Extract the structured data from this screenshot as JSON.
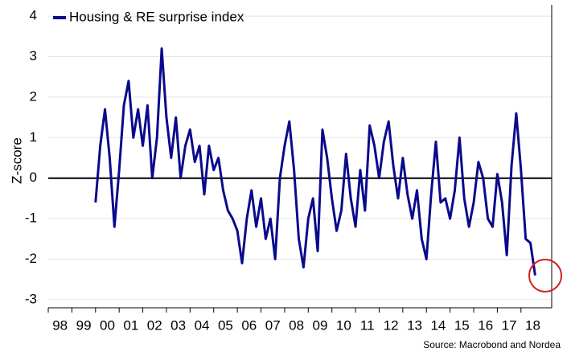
{
  "chart_data": {
    "type": "line",
    "y_label": "Z-score",
    "source": "Source: Macrobond and Nordea",
    "ylim": [
      -3.2,
      4.2
    ],
    "yticks": [
      -3,
      -2,
      -1,
      0,
      1,
      2,
      3,
      4
    ],
    "xlim": [
      1998,
      2019.3
    ],
    "xticks": [
      {
        "value": 1998,
        "label": "98"
      },
      {
        "value": 1999,
        "label": "99"
      },
      {
        "value": 2000,
        "label": "00"
      },
      {
        "value": 2001,
        "label": "01"
      },
      {
        "value": 2002,
        "label": "02"
      },
      {
        "value": 2003,
        "label": "03"
      },
      {
        "value": 2004,
        "label": "04"
      },
      {
        "value": 2005,
        "label": "05"
      },
      {
        "value": 2006,
        "label": "06"
      },
      {
        "value": 2007,
        "label": "07"
      },
      {
        "value": 2008,
        "label": "08"
      },
      {
        "value": 2009,
        "label": "09"
      },
      {
        "value": 2010,
        "label": "10"
      },
      {
        "value": 2011,
        "label": "11"
      },
      {
        "value": 2012,
        "label": "12"
      },
      {
        "value": 2013,
        "label": "13"
      },
      {
        "value": 2014,
        "label": "14"
      },
      {
        "value": 2015,
        "label": "15"
      },
      {
        "value": 2016,
        "label": "16"
      },
      {
        "value": 2017,
        "label": "17"
      },
      {
        "value": 2018,
        "label": "18"
      }
    ],
    "grid": true,
    "x": [
      2000.0,
      2000.2,
      2000.4,
      2000.6,
      2000.8,
      2001.0,
      2001.2,
      2001.4,
      2001.6,
      2001.8,
      2002.0,
      2002.2,
      2002.4,
      2002.6,
      2002.8,
      2003.0,
      2003.2,
      2003.4,
      2003.6,
      2003.8,
      2004.0,
      2004.2,
      2004.4,
      2004.6,
      2004.8,
      2005.0,
      2005.2,
      2005.4,
      2005.6,
      2005.8,
      2006.0,
      2006.2,
      2006.4,
      2006.6,
      2006.8,
      2007.0,
      2007.2,
      2007.4,
      2007.6,
      2007.8,
      2008.0,
      2008.2,
      2008.4,
      2008.6,
      2008.8,
      2009.0,
      2009.2,
      2009.4,
      2009.6,
      2009.8,
      2010.0,
      2010.2,
      2010.4,
      2010.6,
      2010.8,
      2011.0,
      2011.2,
      2011.4,
      2011.6,
      2011.8,
      2012.0,
      2012.2,
      2012.4,
      2012.6,
      2012.8,
      2013.0,
      2013.2,
      2013.4,
      2013.6,
      2013.8,
      2014.0,
      2014.2,
      2014.4,
      2014.6,
      2014.8,
      2015.0,
      2015.2,
      2015.4,
      2015.6,
      2015.8,
      2016.0,
      2016.2,
      2016.4,
      2016.6,
      2016.8,
      2017.0,
      2017.2,
      2017.4,
      2017.6,
      2017.8,
      2018.0,
      2018.2,
      2018.4,
      2018.6
    ],
    "series": [
      {
        "name": "Housing & RE surprise index",
        "color": "#0a0a8c",
        "values": [
          -0.6,
          0.8,
          1.7,
          0.5,
          -1.2,
          0.2,
          1.8,
          2.4,
          1.0,
          1.7,
          0.8,
          1.8,
          0.0,
          1.0,
          3.2,
          1.5,
          0.5,
          1.5,
          0.0,
          0.8,
          1.2,
          0.4,
          0.8,
          -0.4,
          0.8,
          0.2,
          0.5,
          -0.3,
          -0.8,
          -1.0,
          -1.3,
          -2.1,
          -1.0,
          -0.3,
          -1.2,
          -0.5,
          -1.5,
          -1.0,
          -2.0,
          0.0,
          0.8,
          1.4,
          0.2,
          -1.5,
          -2.2,
          -1.0,
          -0.5,
          -1.8,
          1.2,
          0.5,
          -0.5,
          -1.3,
          -0.8,
          0.6,
          -0.5,
          -1.2,
          0.2,
          -0.8,
          1.3,
          0.8,
          0.0,
          0.9,
          1.4,
          0.3,
          -0.5,
          0.5,
          -0.4,
          -1.0,
          -0.3,
          -1.5,
          -2.0,
          -0.4,
          0.9,
          -0.6,
          -0.5,
          -1.0,
          -0.3,
          1.0,
          -0.5,
          -1.2,
          -0.6,
          0.4,
          0.0,
          -1.0,
          -1.2,
          0.1,
          -0.6,
          -1.9,
          0.3,
          1.6,
          0.2,
          -1.5,
          -1.6,
          -2.4
        ]
      }
    ]
  }
}
